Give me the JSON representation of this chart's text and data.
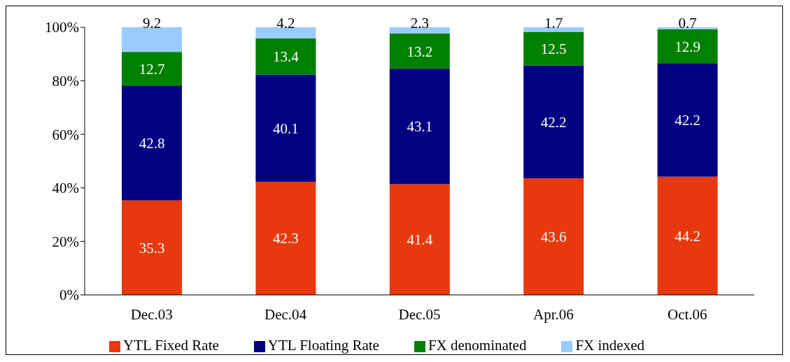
{
  "chart_data": {
    "type": "bar",
    "stacked": true,
    "categories": [
      "Dec.03",
      "Dec.04",
      "Dec.05",
      "Apr.06",
      "Oct.06"
    ],
    "series": [
      {
        "name": "YTL Fixed Rate",
        "color": "#e8380d",
        "values": [
          35.3,
          42.3,
          41.4,
          43.6,
          44.2
        ]
      },
      {
        "name": "YTL Floating Rate",
        "color": "#000080",
        "values": [
          42.8,
          40.1,
          43.1,
          42.2,
          42.2
        ]
      },
      {
        "name": "FX denominated",
        "color": "#008000",
        "values": [
          12.7,
          13.4,
          13.2,
          12.5,
          12.9
        ]
      },
      {
        "name": "FX indexed",
        "color": "#99ccff",
        "values": [
          9.2,
          4.2,
          2.3,
          1.7,
          0.7
        ]
      }
    ],
    "ylim": [
      0,
      100
    ],
    "yticks": [
      {
        "value": 0,
        "label": "0%"
      },
      {
        "value": 20,
        "label": "20%"
      },
      {
        "value": 40,
        "label": "40%"
      },
      {
        "value": 60,
        "label": "60%"
      },
      {
        "value": 80,
        "label": "80%"
      },
      {
        "value": 100,
        "label": "100%"
      }
    ],
    "grid": false,
    "legend": "bottom",
    "data_labels": true
  }
}
